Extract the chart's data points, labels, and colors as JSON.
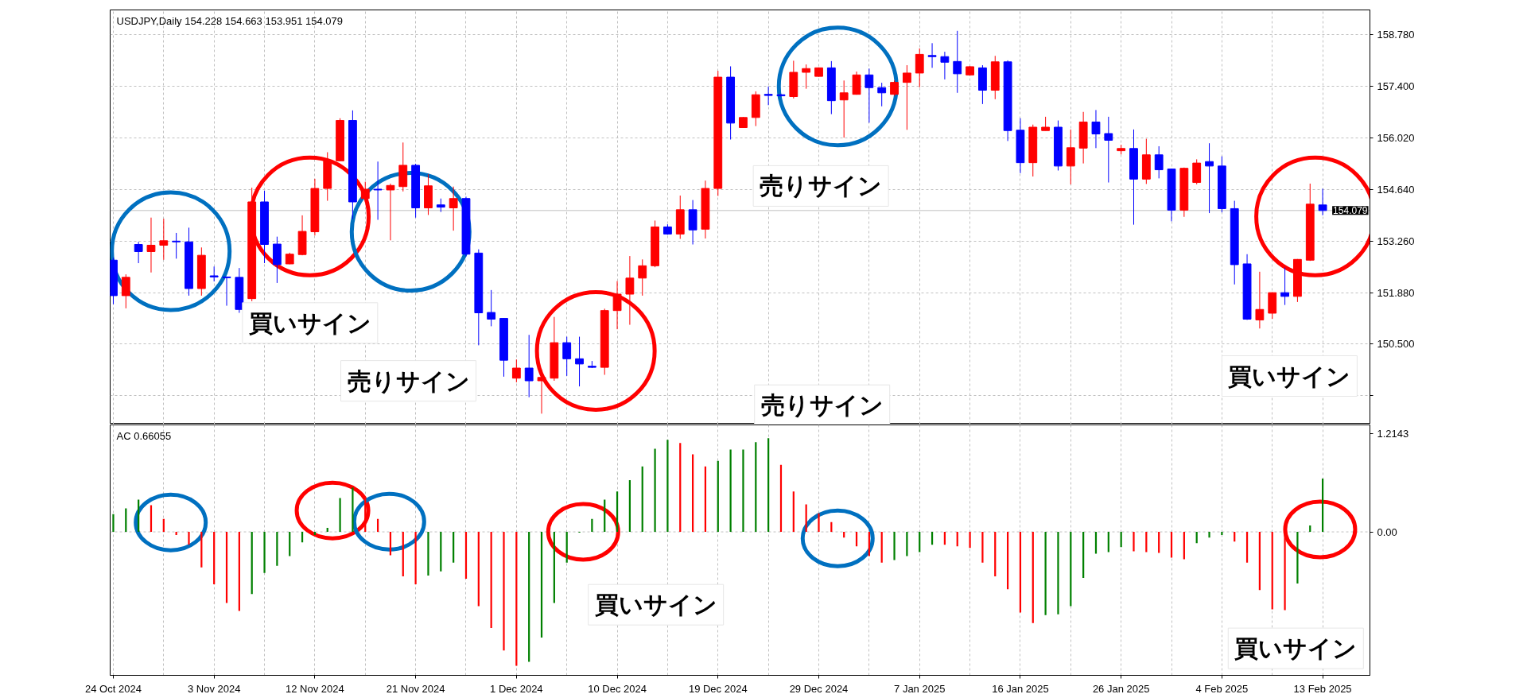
{
  "chart_data": [
    {
      "type": "candlestick",
      "title": "USDJPY,Daily  154.228 154.663 153.951 154.079",
      "categories": [
        null,
        null,
        null,
        null,
        null,
        null,
        null,
        null,
        null,
        null,
        null,
        null,
        null,
        null,
        null,
        null,
        null,
        null,
        null,
        null,
        null,
        null,
        null,
        null,
        null,
        null,
        null,
        null,
        null,
        null,
        null,
        null,
        null,
        null,
        null,
        null,
        null,
        null,
        null,
        null,
        null,
        null,
        null,
        null,
        null,
        null,
        null,
        null,
        null,
        null,
        null,
        null,
        null,
        null,
        null,
        null,
        null,
        null,
        null,
        null,
        null,
        null,
        null,
        null,
        null,
        null,
        null,
        null,
        null,
        null,
        null,
        null,
        null,
        null,
        null,
        null,
        null,
        null,
        null,
        null,
        null,
        null,
        null,
        null,
        null,
        null,
        null,
        null,
        null,
        null,
        null,
        null,
        null,
        null,
        null,
        null,
        null
      ],
      "ohlc": [
        [
          152.75,
          152.82,
          151.57,
          151.8
        ],
        [
          151.8,
          152.37,
          151.46,
          152.29
        ],
        [
          153.17,
          153.24,
          152.67,
          152.98
        ],
        [
          152.98,
          153.89,
          152.42,
          153.15
        ],
        [
          153.15,
          153.86,
          152.76,
          153.27
        ],
        [
          153.26,
          153.48,
          152.79,
          153.24
        ],
        [
          153.24,
          153.62,
          151.8,
          151.99
        ],
        [
          151.99,
          153.09,
          151.8,
          152.88
        ],
        [
          152.33,
          152.58,
          152.18,
          152.3
        ],
        [
          152.3,
          152.31,
          151.53,
          152.28
        ],
        [
          152.29,
          152.54,
          151.34,
          151.43
        ],
        [
          151.72,
          154.69,
          151.65,
          154.31
        ],
        [
          154.31,
          154.61,
          152.67,
          153.17
        ],
        [
          153.18,
          153.38,
          152.14,
          152.63
        ],
        [
          152.65,
          152.95,
          152.64,
          152.91
        ],
        [
          152.9,
          153.95,
          152.88,
          153.52
        ],
        [
          153.51,
          154.93,
          153.41,
          154.67
        ],
        [
          154.67,
          155.64,
          154.34,
          155.41
        ],
        [
          155.41,
          156.55,
          155.4,
          156.49
        ],
        [
          156.49,
          156.76,
          153.85,
          154.31
        ],
        [
          154.4,
          154.85,
          154.3,
          154.65
        ],
        [
          154.65,
          155.39,
          153.83,
          154.63
        ],
        [
          154.63,
          154.8,
          153.28,
          154.75
        ],
        [
          154.72,
          155.9,
          154.59,
          155.29
        ],
        [
          155.29,
          155.33,
          153.89,
          154.15
        ],
        [
          154.15,
          155.05,
          153.96,
          154.74
        ],
        [
          154.23,
          154.4,
          154.04,
          154.17
        ],
        [
          154.15,
          154.72,
          153.54,
          154.4
        ],
        [
          154.4,
          154.45,
          152.85,
          152.91
        ],
        [
          152.94,
          153.04,
          150.47,
          151.34
        ],
        [
          151.35,
          151.95,
          150.98,
          151.17
        ],
        [
          151.19,
          151.2,
          149.63,
          150.07
        ],
        [
          149.59,
          150.09,
          149.48,
          149.86
        ],
        [
          149.86,
          150.75,
          149.08,
          149.52
        ],
        [
          149.52,
          149.82,
          148.64,
          149.61
        ],
        [
          149.59,
          151.23,
          149.52,
          150.54
        ],
        [
          150.54,
          150.7,
          149.65,
          150.11
        ],
        [
          150.11,
          150.7,
          149.37,
          149.97
        ],
        [
          149.91,
          150.05,
          149.86,
          149.88
        ],
        [
          149.88,
          151.45,
          149.68,
          151.4
        ],
        [
          151.4,
          152.19,
          150.9,
          151.84
        ],
        [
          151.84,
          152.86,
          151.02,
          152.27
        ],
        [
          152.27,
          152.77,
          151.8,
          152.6
        ],
        [
          152.6,
          153.81,
          152.56,
          153.64
        ],
        [
          153.64,
          153.71,
          153.43,
          153.45
        ],
        [
          153.45,
          154.48,
          153.32,
          154.1
        ],
        [
          154.1,
          154.36,
          153.17,
          153.56
        ],
        [
          153.58,
          154.88,
          153.33,
          154.67
        ],
        [
          154.67,
          157.82,
          154.47,
          157.65
        ],
        [
          157.65,
          157.94,
          155.98,
          156.42
        ],
        [
          156.3,
          156.58,
          156.29,
          156.57
        ],
        [
          156.57,
          157.27,
          156.34,
          157.18
        ],
        [
          157.19,
          157.4,
          156.9,
          157.16
        ],
        [
          157.18,
          157.2,
          157.13,
          157.15
        ],
        [
          157.13,
          158.09,
          157.08,
          157.78
        ],
        [
          157.78,
          157.99,
          157.34,
          157.88
        ],
        [
          157.67,
          157.91,
          157.66,
          157.9
        ],
        [
          157.9,
          158.08,
          156.66,
          157.02
        ],
        [
          157.04,
          157.56,
          156.03,
          157.23
        ],
        [
          157.19,
          157.8,
          157.18,
          157.71
        ],
        [
          157.71,
          157.88,
          156.43,
          157.37
        ],
        [
          157.37,
          157.5,
          156.87,
          157.23
        ],
        [
          157.19,
          157.56,
          157.15,
          157.51
        ],
        [
          157.51,
          157.97,
          156.24,
          157.76
        ],
        [
          157.76,
          158.42,
          157.38,
          158.26
        ],
        [
          158.23,
          158.56,
          157.9,
          158.2
        ],
        [
          158.2,
          158.33,
          157.59,
          158.05
        ],
        [
          158.07,
          158.89,
          157.23,
          157.74
        ],
        [
          157.71,
          157.95,
          157.69,
          157.93
        ],
        [
          157.9,
          157.97,
          156.93,
          157.3
        ],
        [
          157.3,
          158.22,
          157.06,
          158.06
        ],
        [
          158.06,
          158.1,
          155.94,
          156.22
        ],
        [
          156.23,
          156.55,
          155.08,
          155.36
        ],
        [
          155.36,
          156.38,
          154.99,
          156.31
        ],
        [
          156.22,
          156.59,
          156.22,
          156.31
        ],
        [
          156.31,
          156.49,
          155.15,
          155.27
        ],
        [
          155.27,
          156.25,
          154.78,
          155.76
        ],
        [
          155.75,
          156.72,
          155.34,
          156.45
        ],
        [
          156.45,
          156.77,
          155.75,
          156.13
        ],
        [
          156.14,
          156.59,
          154.83,
          155.96
        ],
        [
          155.68,
          155.84,
          155.58,
          155.74
        ],
        [
          155.74,
          156.25,
          153.7,
          154.92
        ],
        [
          154.92,
          156.0,
          154.79,
          155.57
        ],
        [
          155.57,
          155.8,
          154.94,
          155.17
        ],
        [
          155.19,
          155.2,
          153.79,
          154.09
        ],
        [
          154.09,
          155.23,
          153.91,
          155.21
        ],
        [
          154.83,
          155.45,
          154.78,
          155.35
        ],
        [
          155.39,
          155.88,
          154.01,
          155.27
        ],
        [
          155.27,
          155.53,
          154.03,
          154.13
        ],
        [
          154.13,
          154.34,
          152.1,
          152.63
        ],
        [
          152.65,
          152.91,
          151.15,
          151.17
        ],
        [
          151.15,
          152.44,
          150.92,
          151.43
        ],
        [
          151.33,
          151.89,
          151.18,
          151.88
        ],
        [
          151.88,
          152.55,
          151.55,
          151.78
        ],
        [
          151.78,
          152.78,
          151.63,
          152.77
        ],
        [
          152.75,
          154.8,
          152.73,
          154.25
        ],
        [
          154.228,
          154.663,
          153.951,
          154.079
        ]
      ],
      "colors": [
        "#0000ff",
        "#ff0000",
        "#0000ff",
        "#ff0000",
        "#ff0000",
        "#0000ff",
        "#0000ff",
        "#ff0000",
        "#0000ff",
        "#0000ff",
        "#0000ff",
        "#ff0000",
        "#0000ff",
        "#0000ff",
        "#ff0000",
        "#ff0000",
        "#ff0000",
        "#ff0000",
        "#ff0000",
        "#0000ff",
        "#ff0000",
        "#0000ff",
        "#ff0000",
        "#ff0000",
        "#0000ff",
        "#ff0000",
        "#0000ff",
        "#ff0000",
        "#0000ff",
        "#0000ff",
        "#0000ff",
        "#0000ff",
        "#ff0000",
        "#0000ff",
        "#ff0000",
        "#ff0000",
        "#0000ff",
        "#0000ff",
        "#0000ff",
        "#ff0000",
        "#ff0000",
        "#ff0000",
        "#ff0000",
        "#ff0000",
        "#0000ff",
        "#ff0000",
        "#0000ff",
        "#ff0000",
        "#ff0000",
        "#0000ff",
        "#ff0000",
        "#ff0000",
        "#0000ff",
        "#0000ff",
        "#ff0000",
        "#ff0000",
        "#ff0000",
        "#0000ff",
        "#ff0000",
        "#ff0000",
        "#0000ff",
        "#0000ff",
        "#ff0000",
        "#ff0000",
        "#ff0000",
        "#0000ff",
        "#0000ff",
        "#0000ff",
        "#ff0000",
        "#0000ff",
        "#ff0000",
        "#0000ff",
        "#0000ff",
        "#ff0000",
        "#ff0000",
        "#0000ff",
        "#ff0000",
        "#ff0000",
        "#0000ff",
        "#0000ff",
        "#ff0000",
        "#0000ff",
        "#ff0000",
        "#0000ff",
        "#0000ff",
        "#ff0000",
        "#ff0000",
        "#0000ff",
        "#0000ff",
        "#0000ff",
        "#0000ff",
        "#ff0000",
        "#ff0000",
        "#0000ff",
        "#ff0000",
        "#ff0000",
        "#0000ff"
      ],
      "ylim": [
        148.36,
        159.45
      ],
      "yticks": [
        {
          "value": 149.12,
          "label": null
        },
        {
          "value": 150.5,
          "label": "150.500"
        },
        {
          "value": 151.88,
          "label": "151.880"
        },
        {
          "value": 153.26,
          "label": "153.260"
        },
        {
          "value": 154.64,
          "label": "154.640"
        },
        {
          "value": 156.02,
          "label": "156.020"
        },
        {
          "value": 157.4,
          "label": "157.400"
        },
        {
          "value": 158.78,
          "label": "158.780"
        }
      ],
      "grid": true,
      "tick_labels": "y",
      "ref_lines": [
        {
          "axis": "y",
          "value": 154.079,
          "label": "154.079",
          "color": "#c0c0c0"
        }
      ],
      "annotations": [
        "買いサイン",
        "売りサイン",
        "売りサイン",
        "売りサイン",
        "買いサイン"
      ]
    },
    {
      "type": "bar",
      "title": "AC 0.66055",
      "categories": [
        "24 Oct 2024",
        null,
        null,
        null,
        null,
        null,
        null,
        null,
        "3 Nov 2024",
        null,
        null,
        null,
        null,
        null,
        null,
        null,
        "12 Nov 2024",
        null,
        null,
        null,
        null,
        null,
        null,
        null,
        "21 Nov 2024",
        null,
        null,
        null,
        null,
        null,
        null,
        null,
        "1 Dec 2024",
        null,
        null,
        null,
        null,
        null,
        null,
        null,
        "10 Dec 2024",
        null,
        null,
        null,
        null,
        null,
        null,
        null,
        "19 Dec 2024",
        null,
        null,
        null,
        null,
        null,
        null,
        null,
        "29 Dec 2024",
        null,
        null,
        null,
        null,
        null,
        null,
        null,
        "7 Jan 2025",
        null,
        null,
        null,
        null,
        null,
        null,
        null,
        "16 Jan 2025",
        null,
        null,
        null,
        null,
        null,
        null,
        null,
        "26 Jan 2025",
        null,
        null,
        null,
        null,
        null,
        null,
        null,
        "4 Feb 2025",
        null,
        null,
        null,
        null,
        null,
        null,
        null,
        "13 Feb 2025"
      ],
      "values": [
        0.22,
        0.29,
        0.4,
        0.33,
        0.16,
        -0.04,
        -0.16,
        -0.44,
        -0.65,
        -0.88,
        -0.98,
        -0.77,
        -0.51,
        -0.42,
        -0.3,
        -0.13,
        -0.04,
        0.05,
        0.42,
        0.55,
        0.41,
        0.16,
        -0.29,
        -0.55,
        -0.65,
        -0.54,
        -0.49,
        -0.38,
        -0.58,
        -0.92,
        -1.19,
        -1.47,
        -1.66,
        -1.61,
        -1.31,
        -0.88,
        -0.38,
        -0.01,
        0.16,
        0.4,
        0.5,
        0.64,
        0.81,
        1.03,
        1.14,
        1.1,
        0.96,
        0.81,
        0.88,
        1.02,
        1.02,
        1.11,
        1.16,
        0.83,
        0.5,
        0.34,
        0.23,
        0.12,
        -0.07,
        -0.18,
        -0.3,
        -0.38,
        -0.35,
        -0.3,
        -0.25,
        -0.16,
        -0.16,
        -0.18,
        -0.2,
        -0.38,
        -0.55,
        -0.71,
        -1.0,
        -1.13,
        -1.03,
        -1.02,
        -0.92,
        -0.57,
        -0.27,
        -0.25,
        -0.19,
        -0.24,
        -0.25,
        -0.26,
        -0.32,
        -0.34,
        -0.14,
        -0.07,
        -0.04,
        -0.12,
        -0.38,
        -0.72,
        -0.96,
        -0.97,
        -0.64,
        0.08,
        0.66
      ],
      "colors": [
        "#008000",
        "#008000",
        "#008000",
        "#ff0000",
        "#ff0000",
        "#ff0000",
        "#ff0000",
        "#ff0000",
        "#ff0000",
        "#ff0000",
        "#ff0000",
        "#008000",
        "#008000",
        "#008000",
        "#008000",
        "#008000",
        "#008000",
        "#008000",
        "#008000",
        "#008000",
        "#ff0000",
        "#ff0000",
        "#ff0000",
        "#ff0000",
        "#ff0000",
        "#008000",
        "#008000",
        "#008000",
        "#ff0000",
        "#ff0000",
        "#ff0000",
        "#ff0000",
        "#ff0000",
        "#008000",
        "#008000",
        "#008000",
        "#008000",
        "#008000",
        "#008000",
        "#008000",
        "#008000",
        "#008000",
        "#008000",
        "#008000",
        "#008000",
        "#ff0000",
        "#ff0000",
        "#ff0000",
        "#008000",
        "#008000",
        "#008000",
        "#008000",
        "#008000",
        "#ff0000",
        "#ff0000",
        "#ff0000",
        "#ff0000",
        "#ff0000",
        "#ff0000",
        "#ff0000",
        "#ff0000",
        "#ff0000",
        "#008000",
        "#008000",
        "#008000",
        "#008000",
        "#ff0000",
        "#ff0000",
        "#ff0000",
        "#ff0000",
        "#ff0000",
        "#ff0000",
        "#ff0000",
        "#ff0000",
        "#008000",
        "#008000",
        "#008000",
        "#008000",
        "#008000",
        "#008000",
        "#008000",
        "#ff0000",
        "#ff0000",
        "#ff0000",
        "#ff0000",
        "#ff0000",
        "#008000",
        "#008000",
        "#008000",
        "#ff0000",
        "#ff0000",
        "#ff0000",
        "#ff0000",
        "#ff0000",
        "#008000",
        "#008000",
        "#008000"
      ],
      "ylim": [
        -1.777,
        1.325
      ],
      "yticks": [
        {
          "value": 0,
          "label": "0.00"
        },
        1.2143
      ],
      "grid": "x",
      "ref_lines": [
        {
          "axis": "y",
          "value": 0,
          "color": "#c0c0c0",
          "line_style": "dashed"
        }
      ],
      "annotations": [
        "買いサイン",
        "買いサイン"
      ]
    }
  ]
}
